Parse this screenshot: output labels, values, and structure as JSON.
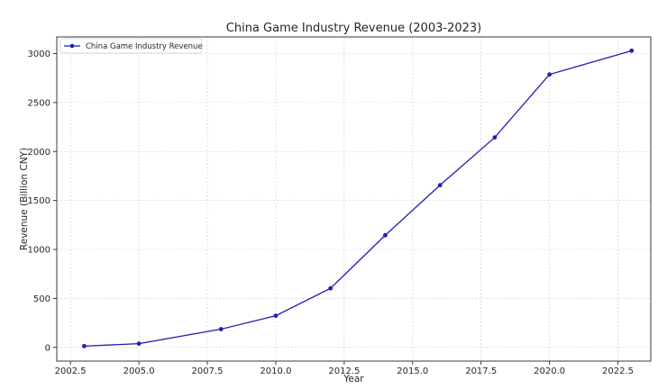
{
  "chart_data": {
    "type": "line",
    "title": "China Game Industry Revenue (2003-2023)",
    "xlabel": "Year",
    "ylabel": "Revenue (Billion CNY)",
    "xlim": [
      2002.0,
      2023.7
    ],
    "ylim": [
      -140,
      3170
    ],
    "x_ticks": [
      2002.5,
      2005.0,
      2007.5,
      2010.0,
      2012.5,
      2015.0,
      2017.5,
      2020.0,
      2022.5
    ],
    "x_tick_labels": [
      "2002.5",
      "2005.0",
      "2007.5",
      "2010.0",
      "2012.5",
      "2015.0",
      "2017.5",
      "2020.0",
      "2022.5"
    ],
    "y_ticks": [
      0,
      500,
      1000,
      1500,
      2000,
      2500,
      3000
    ],
    "y_tick_labels": [
      "0",
      "500",
      "1000",
      "1500",
      "2000",
      "2500",
      "3000"
    ],
    "grid": true,
    "legend_position": "top-left",
    "color": "#1f1fb4",
    "series": [
      {
        "name": "China Game Industry Revenue",
        "x": [
          2003,
          2005,
          2008,
          2010,
          2012,
          2014,
          2016,
          2018,
          2020,
          2023
        ],
        "y": [
          13,
          38,
          186,
          323,
          603,
          1145,
          1656,
          2144,
          2787,
          3029
        ]
      }
    ]
  }
}
